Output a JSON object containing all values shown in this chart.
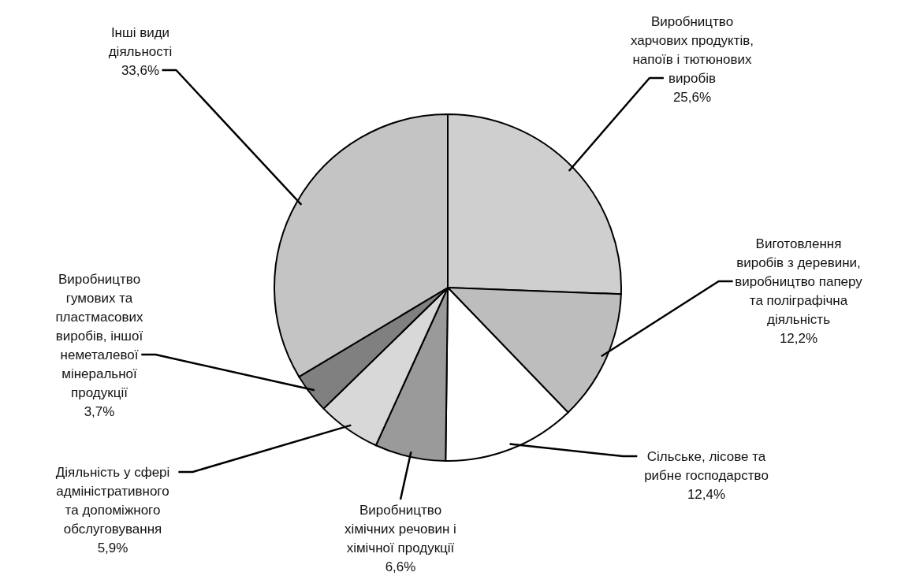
{
  "chart_data": {
    "type": "pie",
    "categories": [
      "Виробництво харчових продуктів, напоїв і тютюнових виробів",
      "Виготовлення виробів з деревини, виробництво паперу та поліграфічна діяльність",
      "Сільське, лісове та рибне господарство",
      "Виробництво хімічних речовин і хімічної продукції",
      "Діяльність у сфері адміністративного та допоміжного обслуговування",
      "Виробництво гумових та пластмасових виробів, іншої неметалевої мінеральної продукції",
      "Інші види діяльності"
    ],
    "values": [
      25.6,
      12.2,
      12.4,
      6.6,
      5.9,
      3.7,
      33.6
    ],
    "value_labels": [
      "25,6%",
      "12,2%",
      "12,4%",
      "6,6%",
      "5,9%",
      "3,7%",
      "33,6%"
    ],
    "colors": [
      "#cfcfcf",
      "#bdbdbd",
      "#ffffff",
      "#9a9a9a",
      "#d8d8d8",
      "#808080",
      "#c4c4c4"
    ]
  }
}
